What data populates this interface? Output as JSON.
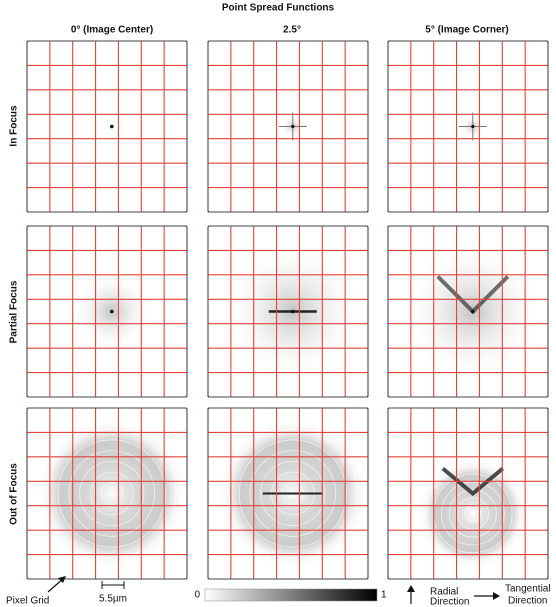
{
  "header": {
    "title": "Point Spread Functions"
  },
  "columns": [
    "0° (Image Center)",
    "2.5°",
    "5° (Image Corner)"
  ],
  "rows": [
    "In Focus",
    "Partial Focus",
    "Out of Focus"
  ],
  "footer": {
    "pixel_grid": "Pixel Grid",
    "scale": "5.5µm",
    "colorbar_min": "0",
    "colorbar_max": "1",
    "radial": [
      "Radial",
      "Direction"
    ],
    "tangential": [
      "Tangential",
      "Direction"
    ]
  }
}
